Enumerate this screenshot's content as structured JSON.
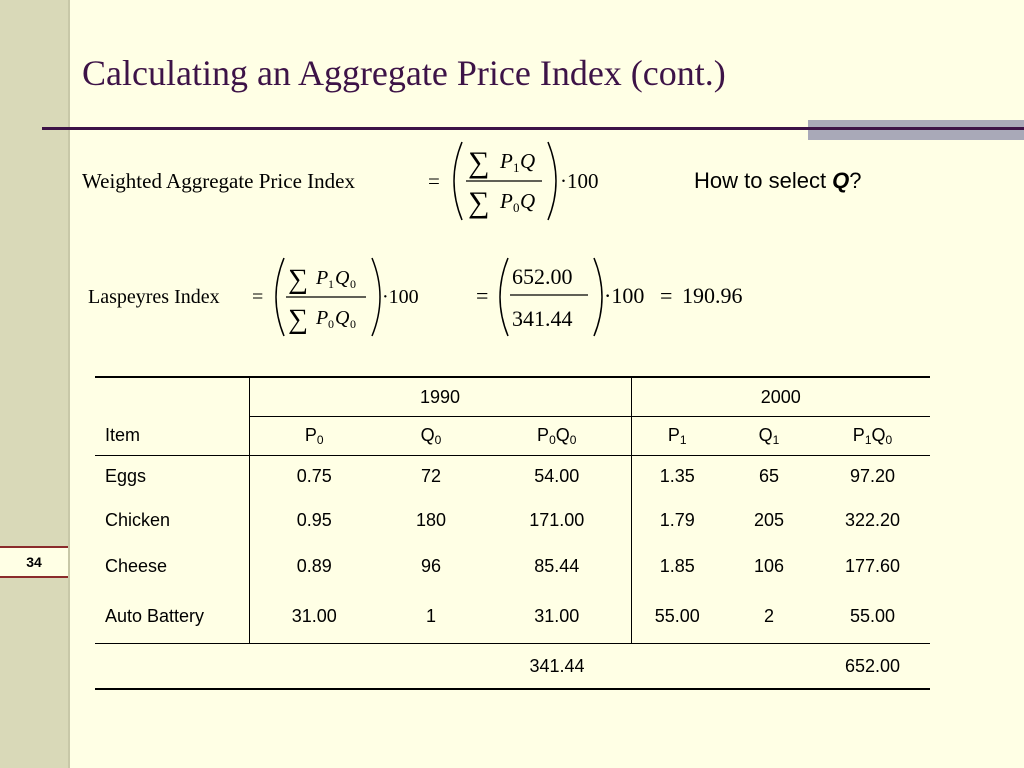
{
  "slide": {
    "number": "34",
    "title": "Calculating an Aggregate Price Index (cont.)",
    "question_prefix": "How to select ",
    "question_var": "Q",
    "question_suffix": "?"
  },
  "formulas": {
    "weighted": {
      "label": "Weighted Aggregate Price Index",
      "equals": "=",
      "numerator": "∑P₁Q",
      "denominator": "∑P₀Q",
      "multiplier": "·100"
    },
    "laspeyres": {
      "label": "Laspeyres Index",
      "equals": "=",
      "numerator": "∑P₁Q₀",
      "denominator": "∑P₀Q₀",
      "multiplier": "·100",
      "numerator_value": "652.00",
      "denominator_value": "341.44",
      "result": "190.96"
    }
  },
  "table": {
    "years": [
      "1990",
      "2000"
    ],
    "item_header": "Item",
    "columns": [
      {
        "base": "P",
        "sub": "0"
      },
      {
        "base": "Q",
        "sub": "0"
      },
      {
        "base": "P",
        "sub": "0",
        "base2": "Q",
        "sub2": "0"
      },
      {
        "base": "P",
        "sub": "1"
      },
      {
        "base": "Q",
        "sub": "1"
      },
      {
        "base": "P",
        "sub": "1",
        "base2": "Q",
        "sub2": "0"
      }
    ],
    "rows": [
      {
        "item": "Eggs",
        "p0": "0.75",
        "q0": "72",
        "p0q0": "54.00",
        "p1": "1.35",
        "q1": "65",
        "p1q0": "97.20"
      },
      {
        "item": "Chicken",
        "p0": "0.95",
        "q0": "180",
        "p0q0": "171.00",
        "p1": "1.79",
        "q1": "205",
        "p1q0": "322.20"
      },
      {
        "item": "Cheese",
        "p0": "0.89",
        "q0": "96",
        "p0q0": "85.44",
        "p1": "1.85",
        "q1": "106",
        "p1q0": "177.60"
      },
      {
        "item": "Auto Battery",
        "p0": "31.00",
        "q0": "1",
        "p0q0": "31.00",
        "p1": "55.00",
        "q1": "2",
        "p1q0": "55.00"
      }
    ],
    "totals": {
      "p0q0": "341.44",
      "p1q0": "652.00"
    }
  }
}
